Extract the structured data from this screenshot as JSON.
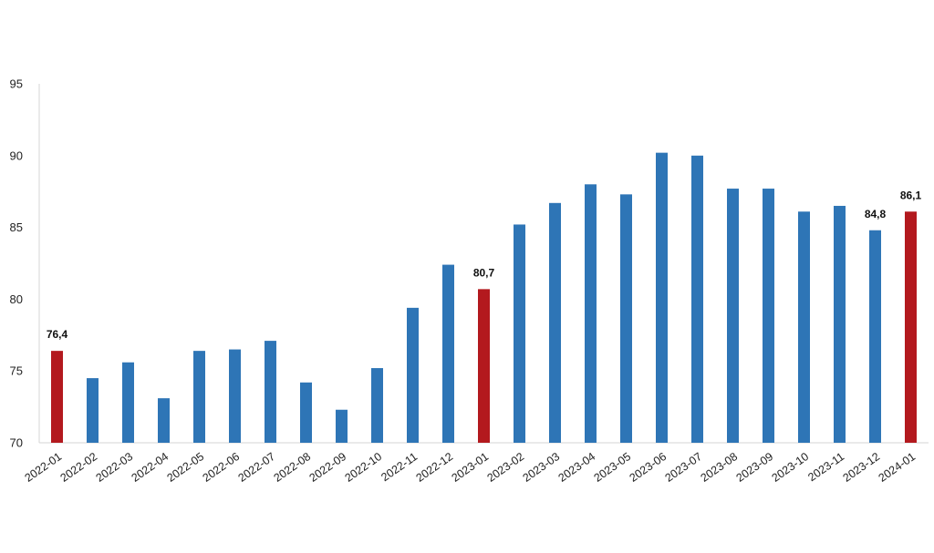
{
  "chart_data": {
    "type": "bar",
    "title": "",
    "xlabel": "",
    "ylabel": "",
    "ylim": [
      70,
      95
    ],
    "yticks": [
      70,
      75,
      80,
      85,
      90,
      95
    ],
    "grid": false,
    "legend": "none",
    "categories": [
      "2022-01",
      "2022-02",
      "2022-03",
      "2022-04",
      "2022-05",
      "2022-06",
      "2022-07",
      "2022-08",
      "2022-09",
      "2022-10",
      "2022-11",
      "2022-12",
      "2023-01",
      "2023-02",
      "2023-03",
      "2023-04",
      "2023-05",
      "2023-06",
      "2023-07",
      "2023-08",
      "2023-09",
      "2023-10",
      "2023-11",
      "2023-12",
      "2024-01"
    ],
    "values": [
      76.4,
      74.5,
      75.6,
      73.1,
      76.4,
      76.5,
      77.1,
      74.2,
      72.3,
      75.2,
      79.4,
      82.4,
      80.7,
      85.2,
      86.7,
      88.0,
      87.3,
      90.2,
      90.0,
      87.7,
      87.7,
      86.1,
      86.5,
      84.8,
      86.1
    ],
    "highlighted": [
      "2022-01",
      "2023-01",
      "2024-01"
    ],
    "data_labels": [
      {
        "category": "2022-01",
        "text": "76,4"
      },
      {
        "category": "2023-01",
        "text": "80,7"
      },
      {
        "category": "2023-12",
        "text": "84,8"
      },
      {
        "category": "2024-01",
        "text": "86,1"
      }
    ],
    "colors": {
      "default": "#2e75b6",
      "highlight": "#b3191e"
    }
  }
}
